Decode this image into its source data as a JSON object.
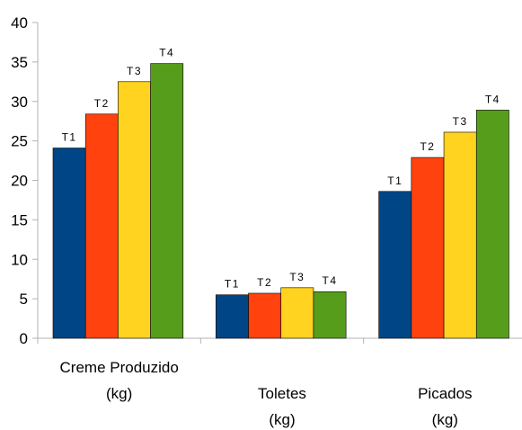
{
  "chart_data": {
    "type": "bar",
    "categories": [
      [
        "Creme Produzido",
        "(kg)"
      ],
      [
        "Toletes",
        "(kg)"
      ],
      [
        "Picados",
        "(kg)"
      ]
    ],
    "series": [
      {
        "name": "T1",
        "color": "#004586",
        "values": [
          24.1,
          5.5,
          18.6
        ]
      },
      {
        "name": "T2",
        "color": "#ff420e",
        "values": [
          28.4,
          5.7,
          22.9
        ]
      },
      {
        "name": "T3",
        "color": "#ffd320",
        "values": [
          32.5,
          6.4,
          26.1
        ]
      },
      {
        "name": "T4",
        "color": "#579d1c",
        "values": [
          34.8,
          5.9,
          28.9
        ]
      }
    ],
    "data_labels": [
      "T1",
      "T2",
      "T3",
      "T4"
    ],
    "ylim": [
      0,
      40
    ],
    "yticks": [
      0,
      5,
      10,
      15,
      20,
      25,
      30,
      35,
      40
    ],
    "grid": false,
    "legend": "none"
  }
}
